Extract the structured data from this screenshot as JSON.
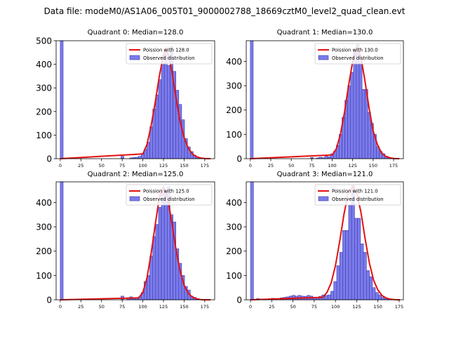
{
  "figure": {
    "suptitle": "Data file: modeM0/AS1A06_005T01_9000002788_18669cztM0_level2_quad_clean.evt"
  },
  "colors": {
    "bar_fill": "#7b7bec",
    "bar_edge": "#3c3caa",
    "fit_line": "#e31010"
  },
  "legend_labels": {
    "observed": "Observed distribution"
  },
  "chart_data": [
    {
      "type": "bar",
      "title": "Quadrant 0: Median=128.0",
      "fit_label": "Poission with 128.0",
      "mu": 128,
      "peak": 470,
      "xlim": [
        -5,
        187
      ],
      "ylim": [
        0,
        500
      ],
      "xticks": [
        0,
        25,
        50,
        75,
        100,
        125,
        150,
        175
      ],
      "yticks": [
        0,
        100,
        200,
        300,
        400,
        500
      ],
      "bin_width": 3.5,
      "bins": [
        [
          0,
          500
        ],
        [
          73.5,
          10
        ],
        [
          84,
          3
        ],
        [
          87.5,
          5
        ],
        [
          91,
          6
        ],
        [
          94.5,
          10
        ],
        [
          98,
          22
        ],
        [
          101.5,
          40
        ],
        [
          105,
          70
        ],
        [
          108.5,
          135
        ],
        [
          112,
          210
        ],
        [
          115.5,
          270
        ],
        [
          119,
          335
        ],
        [
          122.5,
          405
        ],
        [
          126,
          460
        ],
        [
          129.5,
          395
        ],
        [
          133,
          475
        ],
        [
          136.5,
          370
        ],
        [
          140,
          290
        ],
        [
          143.5,
          230
        ],
        [
          147,
          165
        ],
        [
          150.5,
          85
        ],
        [
          154,
          50
        ],
        [
          157.5,
          30
        ],
        [
          161,
          15
        ],
        [
          164.5,
          7
        ],
        [
          168,
          3
        ],
        [
          171.5,
          2
        ]
      ],
      "fit_x": [
        0,
        100,
        105,
        110,
        115,
        120,
        125,
        128,
        131,
        135,
        140,
        145,
        150,
        155,
        160,
        165,
        170,
        175,
        182
      ],
      "fit_y": [
        0,
        20,
        60,
        140,
        240,
        350,
        440,
        470,
        440,
        375,
        260,
        160,
        90,
        45,
        20,
        8,
        3,
        1,
        0
      ]
    },
    {
      "type": "bar",
      "title": "Quadrant 1: Median=130.0",
      "fit_label": "Poission with 130.0",
      "mu": 130,
      "peak": 460,
      "xlim": [
        -5,
        187
      ],
      "ylim": [
        0,
        485
      ],
      "xticks": [
        0,
        25,
        50,
        75,
        100,
        125,
        150,
        175
      ],
      "yticks": [
        0,
        100,
        200,
        300,
        400
      ],
      "bin_width": 3.5,
      "bins": [
        [
          0,
          485
        ],
        [
          73.5,
          5
        ],
        [
          80.5,
          3
        ],
        [
          84,
          6
        ],
        [
          87.5,
          4
        ],
        [
          91,
          10
        ],
        [
          94.5,
          8
        ],
        [
          98,
          20
        ],
        [
          101.5,
          30
        ],
        [
          105,
          55
        ],
        [
          108.5,
          100
        ],
        [
          112,
          170
        ],
        [
          115.5,
          240
        ],
        [
          119,
          300
        ],
        [
          122.5,
          355
        ],
        [
          126,
          445
        ],
        [
          129.5,
          470
        ],
        [
          133,
          400
        ],
        [
          136.5,
          285
        ],
        [
          140,
          285
        ],
        [
          143.5,
          190
        ],
        [
          147,
          145
        ],
        [
          150.5,
          100
        ],
        [
          154,
          50
        ],
        [
          157.5,
          30
        ],
        [
          161,
          20
        ],
        [
          164.5,
          10
        ],
        [
          168,
          5
        ],
        [
          171.5,
          3
        ]
      ],
      "fit_x": [
        0,
        100,
        105,
        110,
        115,
        120,
        125,
        130,
        135,
        140,
        145,
        150,
        155,
        160,
        165,
        170,
        175,
        182
      ],
      "fit_y": [
        0,
        15,
        40,
        100,
        190,
        300,
        400,
        460,
        420,
        320,
        210,
        115,
        60,
        25,
        10,
        4,
        1,
        0
      ]
    },
    {
      "type": "bar",
      "title": "Quadrant 2: Median=125.0",
      "fit_label": "Poission with 125.0",
      "mu": 125,
      "peak": 465,
      "xlim": [
        -5,
        187
      ],
      "ylim": [
        0,
        485
      ],
      "xticks": [
        0,
        25,
        50,
        75,
        100,
        125,
        150,
        175
      ],
      "yticks": [
        0,
        100,
        200,
        300,
        400
      ],
      "bin_width": 3.5,
      "bins": [
        [
          0,
          485
        ],
        [
          73.5,
          15
        ],
        [
          80.5,
          5
        ],
        [
          84,
          12
        ],
        [
          87.5,
          8
        ],
        [
          91,
          6
        ],
        [
          94.5,
          12
        ],
        [
          98,
          30
        ],
        [
          101.5,
          75
        ],
        [
          105,
          100
        ],
        [
          108.5,
          180
        ],
        [
          112,
          260
        ],
        [
          115.5,
          310
        ],
        [
          119,
          380
        ],
        [
          122.5,
          455
        ],
        [
          126,
          440
        ],
        [
          129.5,
          465
        ],
        [
          133,
          350
        ],
        [
          136.5,
          320
        ],
        [
          140,
          210
        ],
        [
          143.5,
          150
        ],
        [
          147,
          100
        ],
        [
          150.5,
          55
        ],
        [
          154,
          40
        ],
        [
          157.5,
          15
        ],
        [
          161,
          10
        ],
        [
          164.5,
          5
        ]
      ],
      "fit_x": [
        0,
        95,
        100,
        105,
        110,
        115,
        120,
        125,
        130,
        135,
        140,
        145,
        150,
        155,
        160,
        165,
        170,
        175,
        182
      ],
      "fit_y": [
        0,
        8,
        30,
        90,
        190,
        310,
        420,
        465,
        420,
        320,
        210,
        120,
        60,
        27,
        11,
        4,
        1,
        0,
        0
      ]
    },
    {
      "type": "bar",
      "title": "Quadrant 3: Median=121.0",
      "fit_label": "Poission with 121.0",
      "mu": 121,
      "peak": 465,
      "xlim": [
        -5,
        180
      ],
      "ylim": [
        0,
        485
      ],
      "xticks": [
        0,
        25,
        50,
        75,
        100,
        125,
        150,
        175
      ],
      "yticks": [
        0,
        100,
        200,
        300,
        400
      ],
      "bin_width": 3.5,
      "bins": [
        [
          0,
          485
        ],
        [
          7,
          5
        ],
        [
          14,
          3
        ],
        [
          24.5,
          6
        ],
        [
          28,
          5
        ],
        [
          35,
          8
        ],
        [
          38.5,
          10
        ],
        [
          42,
          12
        ],
        [
          45.5,
          15
        ],
        [
          49,
          18
        ],
        [
          52.5,
          15
        ],
        [
          56,
          18
        ],
        [
          59.5,
          15
        ],
        [
          63,
          14
        ],
        [
          66.5,
          18
        ],
        [
          70,
          15
        ],
        [
          73.5,
          10
        ],
        [
          77,
          8
        ],
        [
          80.5,
          14
        ],
        [
          84,
          20
        ],
        [
          87.5,
          18
        ],
        [
          91,
          20
        ],
        [
          94.5,
          35
        ],
        [
          98,
          75
        ],
        [
          101.5,
          140
        ],
        [
          105,
          195
        ],
        [
          108.5,
          285
        ],
        [
          112,
          285
        ],
        [
          115.5,
          390
        ],
        [
          119,
          470
        ],
        [
          122.5,
          335
        ],
        [
          126,
          335
        ],
        [
          129.5,
          230
        ],
        [
          133,
          195
        ],
        [
          136.5,
          120
        ],
        [
          140,
          95
        ],
        [
          143.5,
          50
        ],
        [
          147,
          30
        ],
        [
          150.5,
          20
        ],
        [
          154,
          10
        ],
        [
          157.5,
          5
        ],
        [
          161,
          3
        ],
        [
          164.5,
          2
        ]
      ],
      "fit_x": [
        0,
        85,
        90,
        95,
        100,
        105,
        110,
        115,
        121,
        125,
        130,
        135,
        140,
        145,
        150,
        155,
        160,
        165,
        170,
        176
      ],
      "fit_y": [
        0,
        10,
        30,
        70,
        140,
        240,
        350,
        440,
        465,
        440,
        360,
        250,
        150,
        80,
        40,
        17,
        7,
        2,
        1,
        0
      ]
    }
  ]
}
